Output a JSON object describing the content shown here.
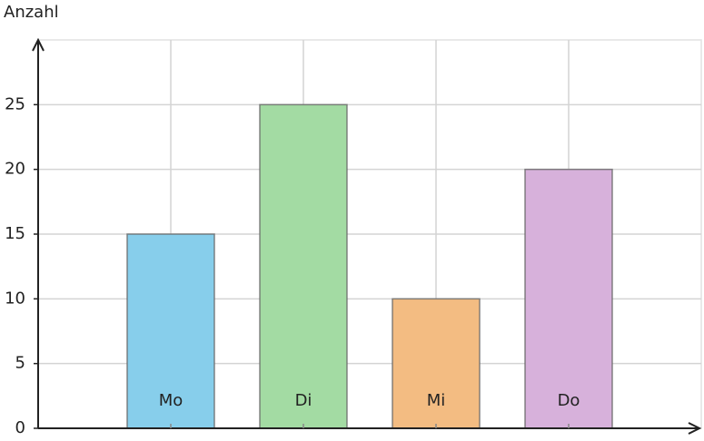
{
  "chart_data": {
    "type": "bar",
    "y_label": "Anzahl",
    "categories": [
      "Mo",
      "Di",
      "Mi",
      "Do"
    ],
    "values": [
      15,
      25,
      10,
      20
    ],
    "colors": [
      "#87ceeb",
      "#a3dba3",
      "#f3bc82",
      "#d7b1db"
    ],
    "ylim": [
      0,
      30
    ],
    "yticks": [
      0,
      5,
      10,
      15,
      20,
      25
    ],
    "grid": true
  }
}
